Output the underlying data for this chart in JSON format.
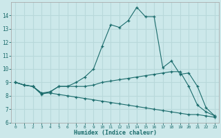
{
  "xlabel": "Humidex (Indice chaleur)",
  "background_color": "#cce8ea",
  "line_color": "#1a6b6b",
  "grid_color": "#b8d8da",
  "xlim": [
    -0.5,
    23.5
  ],
  "ylim": [
    6,
    15
  ],
  "yticks": [
    6,
    7,
    8,
    9,
    10,
    11,
    12,
    13,
    14
  ],
  "xticks": [
    0,
    1,
    2,
    3,
    4,
    5,
    6,
    7,
    8,
    9,
    10,
    11,
    12,
    13,
    14,
    15,
    16,
    17,
    18,
    19,
    20,
    21,
    22,
    23
  ],
  "line1_x": [
    0,
    1,
    2,
    3,
    4,
    5,
    6,
    7,
    8,
    9,
    10,
    11,
    12,
    13,
    14,
    15,
    16,
    17,
    18,
    19,
    20,
    21,
    22,
    23
  ],
  "line1_y": [
    9.0,
    8.8,
    8.7,
    8.1,
    8.3,
    8.7,
    8.7,
    9.0,
    9.4,
    10.0,
    11.7,
    13.3,
    13.1,
    13.6,
    14.6,
    13.9,
    13.9,
    10.1,
    10.6,
    9.6,
    9.7,
    8.7,
    7.1,
    6.5
  ],
  "line2_x": [
    0,
    1,
    2,
    3,
    4,
    5,
    6,
    7,
    8,
    9,
    10,
    11,
    12,
    13,
    14,
    15,
    16,
    17,
    18,
    19,
    20,
    21,
    22,
    23
  ],
  "line2_y": [
    9.0,
    8.8,
    8.7,
    8.2,
    8.3,
    8.7,
    8.7,
    8.7,
    8.7,
    8.8,
    9.0,
    9.1,
    9.2,
    9.3,
    9.4,
    9.5,
    9.6,
    9.7,
    9.8,
    9.8,
    8.7,
    7.3,
    6.8,
    6.5
  ],
  "line3_x": [
    0,
    1,
    2,
    3,
    4,
    5,
    6,
    7,
    8,
    9,
    10,
    11,
    12,
    13,
    14,
    15,
    16,
    17,
    18,
    19,
    20,
    21,
    22,
    23
  ],
  "line3_y": [
    9.0,
    8.8,
    8.7,
    8.2,
    8.2,
    8.1,
    8.0,
    7.9,
    7.8,
    7.7,
    7.6,
    7.5,
    7.4,
    7.3,
    7.2,
    7.1,
    7.0,
    6.9,
    6.8,
    6.7,
    6.6,
    6.6,
    6.5,
    6.4
  ]
}
